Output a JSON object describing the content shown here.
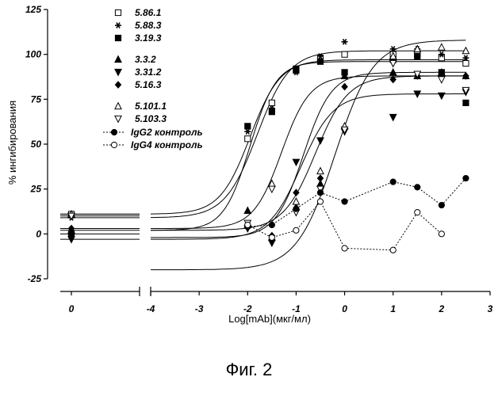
{
  "caption": "Фиг. 2",
  "chart_data": {
    "type": "scatter",
    "title": "",
    "xlabel": "Log[mAb](мкг/мл)",
    "ylabel": "% ингибирования",
    "xlim": [
      -4,
      3
    ],
    "ylim": [
      -25,
      125
    ],
    "x_break": {
      "left_axis_value": 0,
      "left_tick_label": "0"
    },
    "x_ticks": [
      -4,
      -3,
      -2,
      -1,
      0,
      1,
      2,
      3
    ],
    "y_ticks": [
      -25,
      0,
      25,
      50,
      75,
      100,
      125
    ],
    "grid": false,
    "legend_position": "top-left",
    "series": [
      {
        "name": "5.86.1",
        "marker": "open-square",
        "line": "solid",
        "baseline_y": 11,
        "points": [
          {
            "x": -2,
            "y": 53
          },
          {
            "x": -1.5,
            "y": 73
          },
          {
            "x": -1,
            "y": 91
          },
          {
            "x": -0.5,
            "y": 98
          },
          {
            "x": 0,
            "y": 100
          },
          {
            "x": 1,
            "y": 100
          },
          {
            "x": 1.5,
            "y": 100
          },
          {
            "x": 2,
            "y": 98
          },
          {
            "x": 2.5,
            "y": 95
          }
        ],
        "curve": {
          "bottom": 11,
          "top": 97,
          "ec50": -1.95,
          "hill": 1.4
        }
      },
      {
        "name": "5.88.3",
        "marker": "asterisk",
        "line": "solid",
        "baseline_y": 9,
        "points": [
          {
            "x": -2,
            "y": 57
          },
          {
            "x": -1.5,
            "y": 70
          },
          {
            "x": -1,
            "y": 90
          },
          {
            "x": -0.5,
            "y": 99
          },
          {
            "x": 0,
            "y": 107
          },
          {
            "x": 1,
            "y": 103
          },
          {
            "x": 1.5,
            "y": 103
          },
          {
            "x": 2,
            "y": 100
          },
          {
            "x": 2.5,
            "y": 98
          }
        ],
        "curve": {
          "bottom": 9,
          "top": 102,
          "ec50": -1.8,
          "hill": 1.3
        }
      },
      {
        "name": "3.19.3",
        "marker": "filled-square",
        "line": "solid",
        "baseline_y": 0,
        "points": [
          {
            "x": -2,
            "y": 60
          },
          {
            "x": -1.5,
            "y": 68
          },
          {
            "x": -1,
            "y": 92
          },
          {
            "x": -0.5,
            "y": 96
          },
          {
            "x": 0,
            "y": 90
          },
          {
            "x": 1,
            "y": 97
          },
          {
            "x": 1.5,
            "y": 99
          },
          {
            "x": 2,
            "y": 90
          },
          {
            "x": 2.5,
            "y": 73
          }
        ],
        "curve": {
          "bottom": 2,
          "top": 96,
          "ec50": -1.95,
          "hill": 1.6
        }
      },
      {
        "name": "3.3.2",
        "marker": "filled-triangle-up",
        "line": "solid",
        "baseline_y": 2,
        "points": [
          {
            "x": -2,
            "y": 13
          },
          {
            "x": -1.5,
            "y": -2
          },
          {
            "x": -1,
            "y": 15
          },
          {
            "x": -0.5,
            "y": 28
          },
          {
            "x": 0,
            "y": 88
          },
          {
            "x": 1,
            "y": 90
          },
          {
            "x": 1.5,
            "y": 88
          },
          {
            "x": 2,
            "y": 90
          },
          {
            "x": 2.5,
            "y": 88
          }
        ],
        "curve": {
          "bottom": -2,
          "top": 90,
          "ec50": -0.85,
          "hill": 1.5
        }
      },
      {
        "name": "3.31.2",
        "marker": "filled-triangle-down",
        "line": "solid",
        "baseline_y": -3,
        "points": [
          {
            "x": -2,
            "y": 3
          },
          {
            "x": -1.5,
            "y": -5
          },
          {
            "x": -1,
            "y": 40
          },
          {
            "x": -0.5,
            "y": 52
          },
          {
            "x": 0,
            "y": 57
          },
          {
            "x": 1,
            "y": 65
          },
          {
            "x": 1.5,
            "y": 78
          },
          {
            "x": 2,
            "y": 77
          },
          {
            "x": 2.5,
            "y": 79
          }
        ],
        "curve": {
          "bottom": -3,
          "top": 78,
          "ec50": -0.9,
          "hill": 1.3
        }
      },
      {
        "name": "5.16.3",
        "marker": "filled-diamond",
        "line": "solid",
        "baseline_y": 3,
        "points": [
          {
            "x": -2,
            "y": 5
          },
          {
            "x": -1.5,
            "y": -1
          },
          {
            "x": -1,
            "y": 23
          },
          {
            "x": -0.5,
            "y": 31
          },
          {
            "x": 0,
            "y": 82
          },
          {
            "x": 1,
            "y": 86
          },
          {
            "x": 1.5,
            "y": 88
          },
          {
            "x": 2,
            "y": 88
          },
          {
            "x": 2.5,
            "y": 88
          }
        ],
        "curve": {
          "bottom": 3,
          "top": 88,
          "ec50": -1.3,
          "hill": 1.5
        }
      },
      {
        "name": "5.101.1",
        "marker": "open-triangle-up",
        "line": "solid",
        "baseline_y": 11,
        "points": [
          {
            "x": -2,
            "y": 5
          },
          {
            "x": -1.5,
            "y": 28
          },
          {
            "x": -1,
            "y": 18
          },
          {
            "x": -0.5,
            "y": 35
          },
          {
            "x": 0,
            "y": 60
          },
          {
            "x": 1,
            "y": 99
          },
          {
            "x": 1.5,
            "y": 103
          },
          {
            "x": 2,
            "y": 104
          },
          {
            "x": 2.5,
            "y": 102
          }
        ],
        "curve": {
          "bottom": -20,
          "top": 108,
          "ec50": -0.2,
          "hill": 1.1
        }
      },
      {
        "name": "5.103.3",
        "marker": "open-triangle-down",
        "line": "solid",
        "baseline_y": 10,
        "points": [
          {
            "x": -2,
            "y": 6
          },
          {
            "x": -1.5,
            "y": 25
          },
          {
            "x": -1,
            "y": 12
          },
          {
            "x": -0.5,
            "y": 25
          },
          {
            "x": 0,
            "y": 58
          },
          {
            "x": 1,
            "y": 95
          },
          {
            "x": 1.5,
            "y": 89
          },
          {
            "x": 2,
            "y": 86
          },
          {
            "x": 2.5,
            "y": 80
          }
        ],
        "curve": {
          "bottom": 2,
          "top": 88,
          "ec50": -0.6,
          "hill": 1.3
        }
      },
      {
        "name": "IgG2 контроль",
        "marker": "filled-circle",
        "line": "dotted",
        "baseline_y": null,
        "points": [
          {
            "x": -2,
            "y": 4
          },
          {
            "x": -1.5,
            "y": 5
          },
          {
            "x": -1,
            "y": 14
          },
          {
            "x": -0.5,
            "y": 23
          },
          {
            "x": 0,
            "y": 18
          },
          {
            "x": 1,
            "y": 29
          },
          {
            "x": 1.5,
            "y": 26
          },
          {
            "x": 2,
            "y": 16
          },
          {
            "x": 2.5,
            "y": 31
          }
        ]
      },
      {
        "name": "IgG4 контроль",
        "marker": "open-circle",
        "line": "dotted",
        "baseline_y": null,
        "points": [
          {
            "x": -2,
            "y": 5
          },
          {
            "x": -1.5,
            "y": -2
          },
          {
            "x": -1,
            "y": 2
          },
          {
            "x": -0.5,
            "y": 18
          },
          {
            "x": 0,
            "y": -8
          },
          {
            "x": 1,
            "y": -9
          },
          {
            "x": 1.5,
            "y": 12
          },
          {
            "x": 2,
            "y": 0
          }
        ]
      }
    ]
  }
}
